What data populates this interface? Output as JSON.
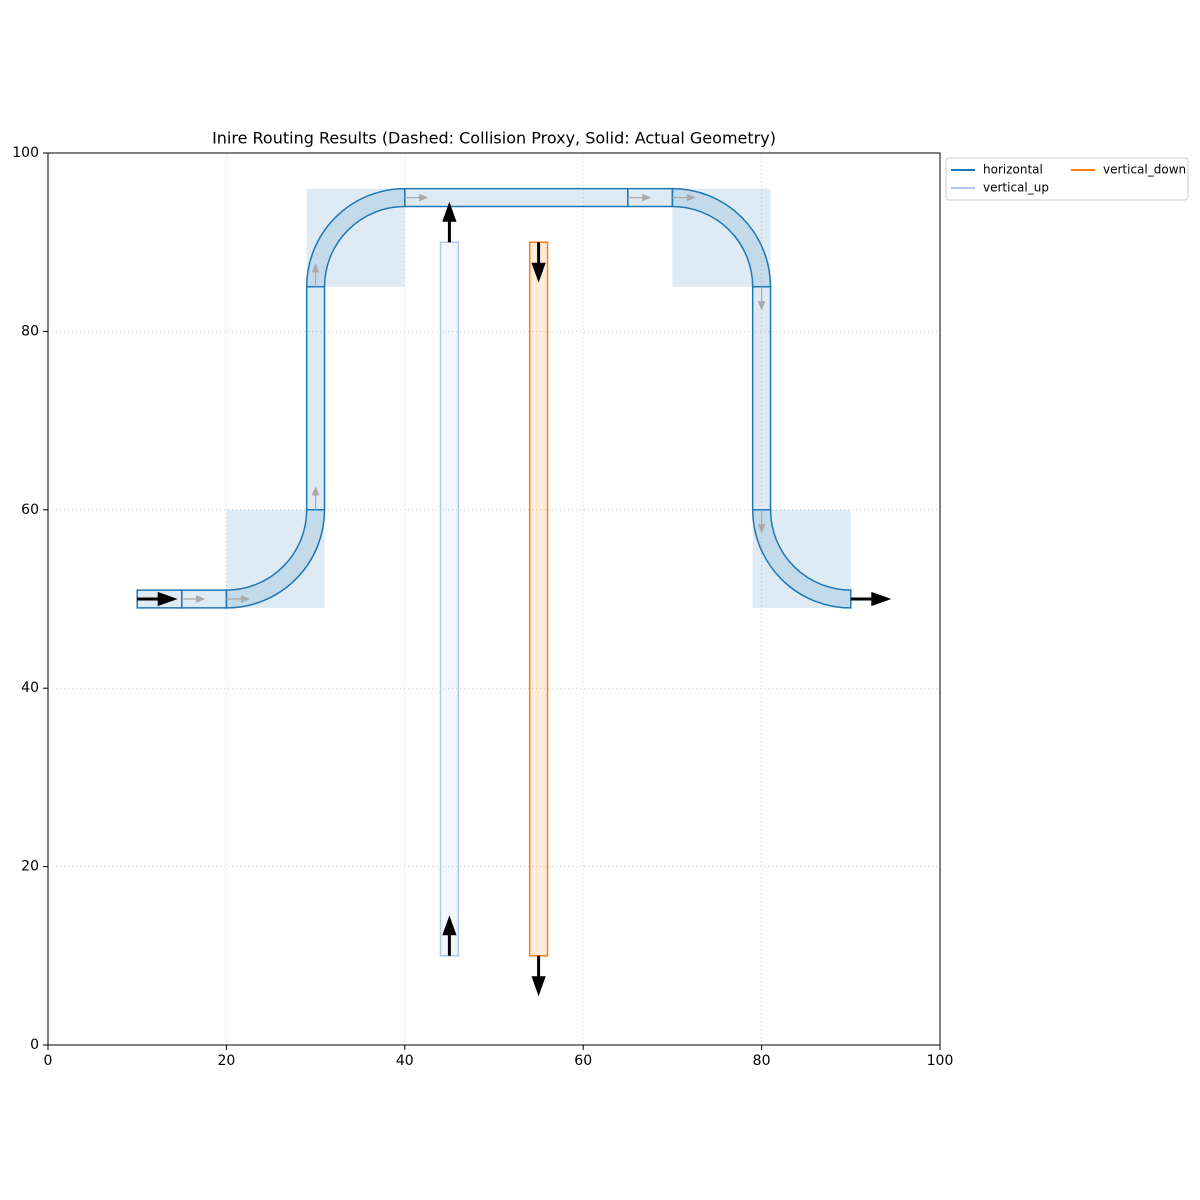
{
  "chart_data": {
    "type": "route",
    "title": "Inire Routing Results (Dashed: Collision Proxy, Solid: Actual Geometry)",
    "xlim": [
      0,
      100
    ],
    "ylim": [
      0,
      100
    ],
    "xticks": [
      0,
      20,
      40,
      60,
      80,
      100
    ],
    "yticks": [
      0,
      20,
      40,
      60,
      80,
      100
    ],
    "grid": true,
    "legend": "outside-upper-right",
    "series": [
      {
        "name": "horizontal",
        "color": "#1f77b4",
        "width": 2,
        "ports": [
          {
            "x": 10,
            "y": 50,
            "angle": 0
          },
          {
            "x": 90,
            "y": 50,
            "angle": 0
          }
        ],
        "segments": [
          {
            "kind": "straight",
            "x": [
              10,
              15
            ],
            "y": [
              50,
              50
            ]
          },
          {
            "kind": "straight",
            "x": [
              15,
              20
            ],
            "y": [
              50,
              50
            ]
          },
          {
            "kind": "bend",
            "x": [
              20,
              30
            ],
            "y": [
              50,
              60
            ],
            "center": [
              20,
              60
            ]
          },
          {
            "kind": "straight",
            "x": [
              30,
              30
            ],
            "y": [
              60,
              85
            ]
          },
          {
            "kind": "bend",
            "x": [
              30,
              40
            ],
            "y": [
              85,
              95
            ],
            "center": [
              40,
              85
            ]
          },
          {
            "kind": "straight",
            "x": [
              40,
              65
            ],
            "y": [
              95,
              95
            ]
          },
          {
            "kind": "straight",
            "x": [
              65,
              70
            ],
            "y": [
              95,
              95
            ]
          },
          {
            "kind": "bend",
            "x": [
              70,
              80
            ],
            "y": [
              95,
              85
            ],
            "center": [
              70,
              85
            ]
          },
          {
            "kind": "straight",
            "x": [
              80,
              80
            ],
            "y": [
              85,
              60
            ]
          },
          {
            "kind": "bend",
            "x": [
              80,
              90
            ],
            "y": [
              60,
              50
            ],
            "center": [
              90,
              60
            ]
          }
        ],
        "proxies": [
          {
            "x": [
              20,
              31
            ],
            "y": [
              49,
              60
            ]
          },
          {
            "x": [
              29,
              40
            ],
            "y": [
              85,
              96
            ]
          },
          {
            "x": [
              70,
              81
            ],
            "y": [
              85,
              96
            ]
          },
          {
            "x": [
              79,
              90
            ],
            "y": [
              49,
              60
            ]
          }
        ]
      },
      {
        "name": "vertical_up",
        "color": "#aec7e8",
        "width": 2,
        "ports": [
          {
            "x": 45,
            "y": 10,
            "angle": 90
          },
          {
            "x": 45,
            "y": 90,
            "angle": 90
          }
        ],
        "segments": [
          {
            "kind": "straight",
            "x": [
              45,
              45
            ],
            "y": [
              10,
              90
            ]
          }
        ],
        "proxies": []
      },
      {
        "name": "vertical_down",
        "color": "#ff7f0e",
        "width": 2,
        "ports": [
          {
            "x": 55,
            "y": 90,
            "angle": 270
          },
          {
            "x": 55,
            "y": 10,
            "angle": 270
          }
        ],
        "segments": [
          {
            "kind": "straight",
            "x": [
              55,
              55
            ],
            "y": [
              90,
              10
            ]
          }
        ],
        "proxies": []
      }
    ]
  }
}
